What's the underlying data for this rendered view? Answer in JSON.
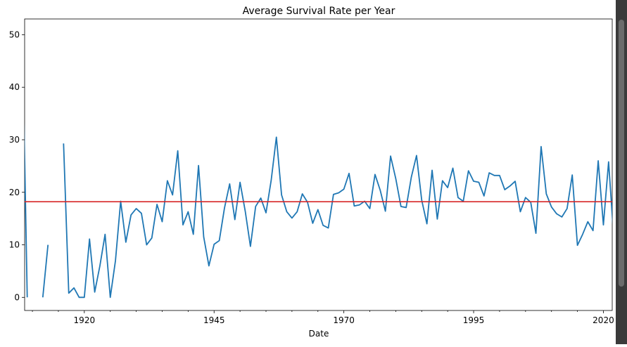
{
  "chart_data": {
    "type": "line",
    "title": "Average Survival Rate per Year",
    "xlabel": "Date",
    "ylabel": "",
    "xlim": [
      1908.5,
      2021.7
    ],
    "ylim": [
      -2.5,
      53
    ],
    "xticks": [
      1920,
      1945,
      1970,
      1995,
      2020
    ],
    "yticks": [
      0,
      10,
      20,
      30,
      40,
      50
    ],
    "grid": false,
    "legend": "none",
    "hline": {
      "y": 18.2,
      "color": "#d62728"
    },
    "series": [
      {
        "color": "#1f77b4",
        "points": [
          [
            1908,
            53.5
          ],
          [
            1909,
            0
          ],
          [
            1912,
            0
          ],
          [
            1913,
            10
          ],
          [
            1916,
            29.3
          ],
          [
            1917,
            0.8
          ],
          [
            1918,
            1.8
          ],
          [
            1919,
            0
          ],
          [
            1920,
            0
          ],
          [
            1921,
            11.1
          ],
          [
            1922,
            1
          ],
          [
            1923,
            6
          ],
          [
            1924,
            12
          ],
          [
            1925,
            0
          ],
          [
            1926,
            7
          ],
          [
            1927,
            18.3
          ],
          [
            1928,
            10.5
          ],
          [
            1929,
            15.7
          ],
          [
            1930,
            16.9
          ],
          [
            1931,
            16
          ],
          [
            1932,
            10
          ],
          [
            1933,
            11.3
          ],
          [
            1934,
            17.7
          ],
          [
            1935,
            14.4
          ],
          [
            1936,
            22.2
          ],
          [
            1937,
            19.5
          ],
          [
            1938,
            27.9
          ],
          [
            1939,
            13.8
          ],
          [
            1940,
            16.3
          ],
          [
            1941,
            12
          ],
          [
            1942,
            25.1
          ],
          [
            1943,
            11.5
          ],
          [
            1944,
            6
          ],
          [
            1945,
            10.1
          ],
          [
            1946,
            10.8
          ],
          [
            1947,
            17
          ],
          [
            1948,
            21.6
          ],
          [
            1949,
            14.8
          ],
          [
            1950,
            21.9
          ],
          [
            1951,
            16.4
          ],
          [
            1952,
            9.7
          ],
          [
            1953,
            17.3
          ],
          [
            1954,
            18.9
          ],
          [
            1955,
            16.1
          ],
          [
            1956,
            22.3
          ],
          [
            1957,
            30.5
          ],
          [
            1958,
            19.5
          ],
          [
            1959,
            16.3
          ],
          [
            1960,
            15.1
          ],
          [
            1961,
            16.3
          ],
          [
            1962,
            19.7
          ],
          [
            1963,
            18.1
          ],
          [
            1964,
            14.1
          ],
          [
            1965,
            16.7
          ],
          [
            1966,
            13.7
          ],
          [
            1967,
            13.2
          ],
          [
            1968,
            19.6
          ],
          [
            1969,
            19.9
          ],
          [
            1970,
            20.6
          ],
          [
            1971,
            23.6
          ],
          [
            1972,
            17.4
          ],
          [
            1973,
            17.6
          ],
          [
            1974,
            18.3
          ],
          [
            1975,
            16.9
          ],
          [
            1976,
            23.4
          ],
          [
            1977,
            20.4
          ],
          [
            1978,
            16.4
          ],
          [
            1979,
            26.9
          ],
          [
            1980,
            22.6
          ],
          [
            1981,
            17.3
          ],
          [
            1982,
            17.1
          ],
          [
            1983,
            22.9
          ],
          [
            1984,
            27
          ],
          [
            1985,
            18.5
          ],
          [
            1986,
            14
          ],
          [
            1987,
            24.2
          ],
          [
            1988,
            14.9
          ],
          [
            1989,
            22.2
          ],
          [
            1990,
            20.9
          ],
          [
            1991,
            24.6
          ],
          [
            1992,
            19
          ],
          [
            1993,
            18.3
          ],
          [
            1994,
            24.1
          ],
          [
            1995,
            22.1
          ],
          [
            1996,
            21.9
          ],
          [
            1997,
            19.3
          ],
          [
            1998,
            23.7
          ],
          [
            1999,
            23.2
          ],
          [
            2000,
            23.2
          ],
          [
            2001,
            20.5
          ],
          [
            2002,
            21.2
          ],
          [
            2003,
            22.1
          ],
          [
            2004,
            16.3
          ],
          [
            2005,
            19
          ],
          [
            2006,
            18.1
          ],
          [
            2007,
            12.2
          ],
          [
            2008,
            28.7
          ],
          [
            2009,
            19.7
          ],
          [
            2010,
            17.2
          ],
          [
            2011,
            15.9
          ],
          [
            2012,
            15.3
          ],
          [
            2013,
            16.9
          ],
          [
            2014,
            23.3
          ],
          [
            2015,
            9.9
          ],
          [
            2016,
            12
          ],
          [
            2017,
            14.4
          ],
          [
            2018,
            12.7
          ],
          [
            2019,
            26
          ],
          [
            2020,
            13.8
          ],
          [
            2021,
            25.8
          ],
          [
            2022,
            11.3
          ]
        ]
      }
    ]
  }
}
